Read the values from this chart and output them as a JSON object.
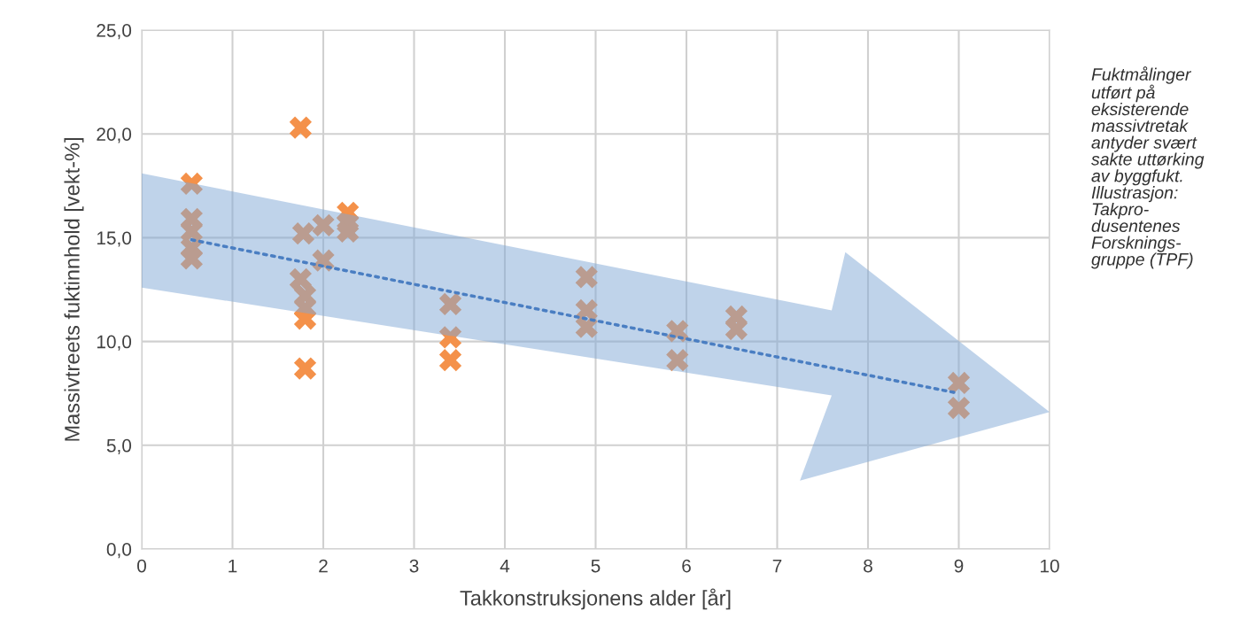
{
  "chart_data": {
    "type": "scatter",
    "xlabel": "Takkonstruksjonens alder [år]",
    "ylabel": "Massivtreets fuktinnhold [vekt-%]",
    "xlim": [
      0,
      10
    ],
    "xticks": [
      0,
      1,
      2,
      3,
      4,
      5,
      6,
      7,
      8,
      9,
      10
    ],
    "ylim": [
      0,
      25
    ],
    "yticks": [
      {
        "value": 0,
        "label": "0,0"
      },
      {
        "value": 5,
        "label": "5,0"
      },
      {
        "value": 10,
        "label": "10,0"
      },
      {
        "value": 15,
        "label": "15,0"
      },
      {
        "value": 20,
        "label": "20,0"
      },
      {
        "value": 25,
        "label": "25,0"
      }
    ],
    "grid": true,
    "legend": false,
    "marker": "cross",
    "series": [
      {
        "color": "#f4914a",
        "x": [
          0.55,
          0.55,
          0.55,
          0.55,
          0.55,
          1.75,
          1.78,
          1.75,
          1.8,
          1.8,
          1.8,
          1.8,
          2.0,
          2.0,
          2.27,
          2.27,
          2.27,
          3.4,
          3.4,
          3.4,
          4.9,
          4.9,
          4.9,
          5.9,
          5.9,
          6.55,
          6.55,
          9.0,
          9.0
        ],
        "values": [
          17.6,
          15.9,
          15.3,
          14.5,
          14.0,
          20.3,
          15.2,
          13.0,
          12.2,
          11.6,
          11.1,
          8.7,
          15.6,
          13.9,
          16.2,
          15.7,
          15.3,
          11.8,
          10.2,
          9.1,
          13.1,
          11.5,
          10.7,
          10.5,
          9.1,
          11.2,
          10.6,
          8.0,
          6.8
        ]
      },
      {
        "type": "line",
        "color": "#4a7ec2",
        "line_style": "dotted",
        "marker": "none",
        "x": [
          0.55,
          9.0
        ],
        "values": [
          14.9,
          7.5
        ]
      }
    ],
    "annotations": [
      "Fuktmålinger\nutført på\neksisterende\nmassivtretak\nantyder svært\nsakte uttørking\nav byggfukt.\nIllustrasjon:\nTakpro-\ndusentenes\nForsknings-\ngruppe (TPF)"
    ]
  }
}
